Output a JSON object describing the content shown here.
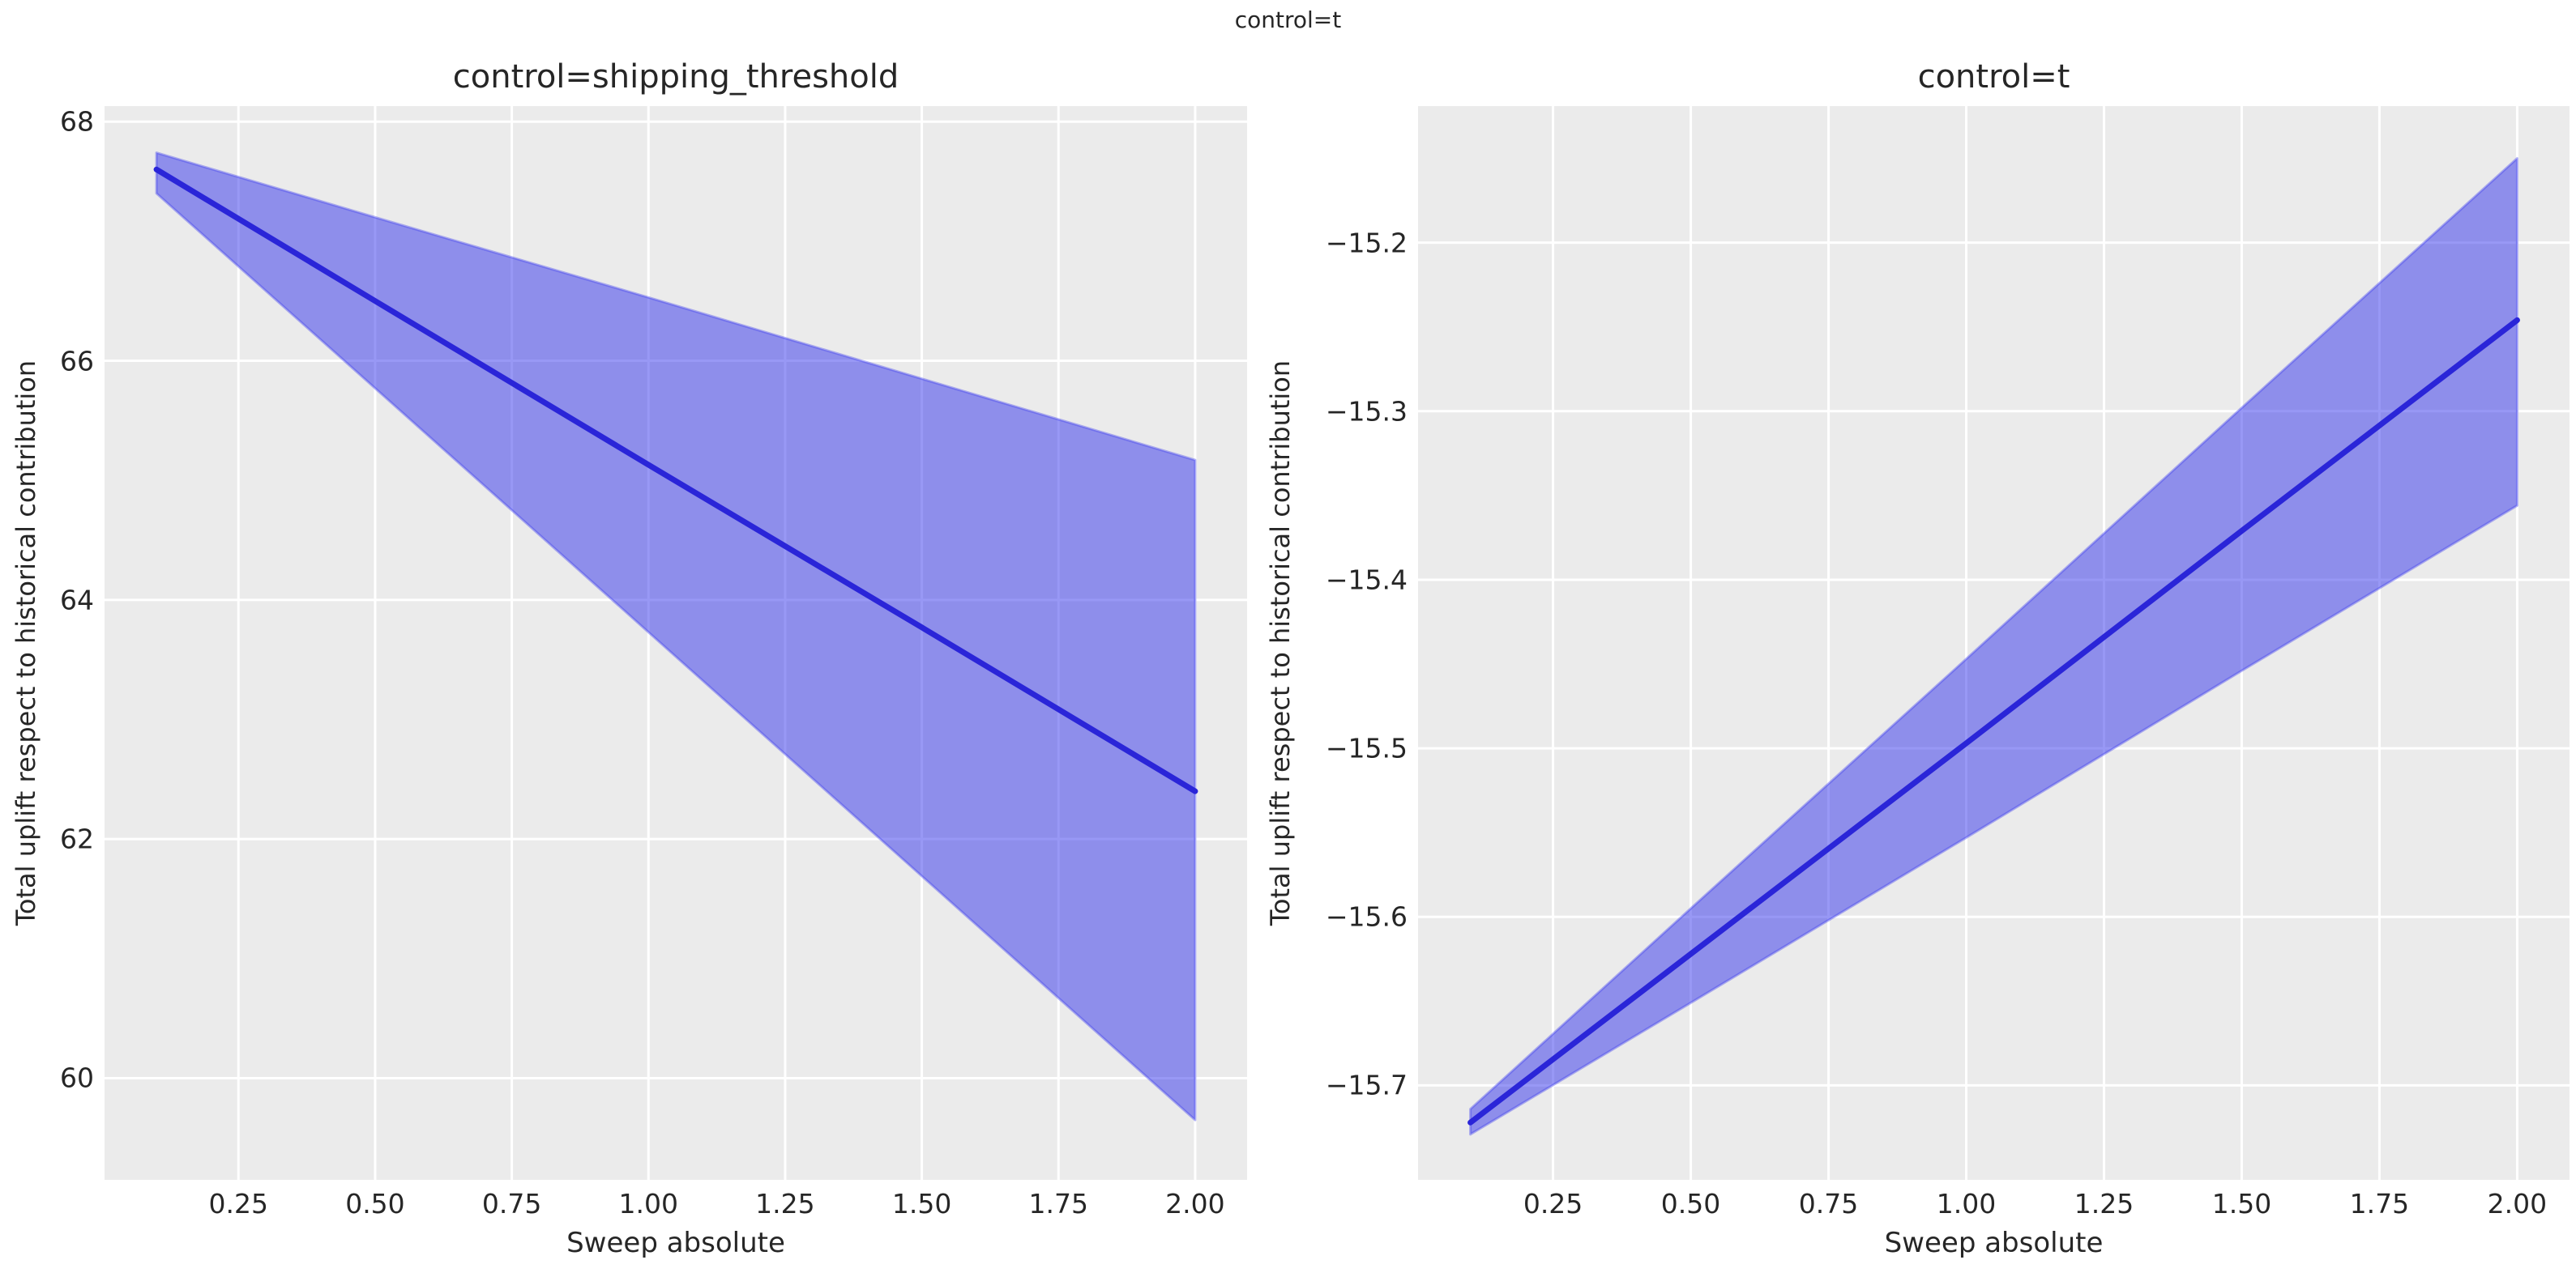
{
  "figure": {
    "suptitle": "control=t",
    "background_color": "#ffffff",
    "axes_background_color": "#ebebeb",
    "grid_color": "#ffffff",
    "line_color": "#2a25d8",
    "band_fill_color": "rgba(50,50,235,0.5)",
    "band_edge_color": "rgba(64,64,238,0.4)",
    "text_color": "#262626"
  },
  "chart_data": [
    {
      "type": "line",
      "title": "control=shipping_threshold",
      "xlabel": "Sweep absolute",
      "ylabel": "Total uplift respect to historical contribution",
      "legend_position": "none",
      "grid": true,
      "x": [
        0.1,
        0.5,
        1.0,
        1.5,
        2.0
      ],
      "series": [
        {
          "name": "mean",
          "values": [
            67.6,
            66.5,
            65.13,
            63.77,
            62.4
          ]
        },
        {
          "name": "ci_upper",
          "values": [
            67.74,
            67.2,
            66.53,
            65.85,
            65.17
          ]
        },
        {
          "name": "ci_lower",
          "values": [
            67.4,
            65.77,
            63.73,
            61.69,
            59.65
          ]
        }
      ],
      "xlim": [
        0.005,
        2.095
      ],
      "ylim": [
        59.15,
        68.13
      ],
      "xticks": {
        "values": [
          0.25,
          0.5,
          0.75,
          1.0,
          1.25,
          1.5,
          1.75,
          2.0
        ],
        "labels": [
          "0.25",
          "0.50",
          "0.75",
          "1.00",
          "1.25",
          "1.50",
          "1.75",
          "2.00"
        ]
      },
      "yticks": {
        "values": [
          68,
          66,
          64,
          62,
          60
        ],
        "labels": [
          "68",
          "66",
          "64",
          "62",
          "60"
        ]
      }
    },
    {
      "type": "line",
      "title": "control=t",
      "xlabel": "Sweep absolute",
      "ylabel": "Total uplift respect to historical contribution",
      "legend_position": "none",
      "grid": true,
      "x": [
        0.1,
        0.5,
        1.0,
        1.5,
        2.0
      ],
      "series": [
        {
          "name": "mean",
          "values": [
            -15.722,
            -15.622,
            -15.497,
            -15.371,
            -15.246
          ]
        },
        {
          "name": "ci_upper",
          "values": [
            -15.714,
            -15.595,
            -15.447,
            -15.298,
            -15.15
          ]
        },
        {
          "name": "ci_lower",
          "values": [
            -15.729,
            -15.651,
            -15.553,
            -15.454,
            -15.356
          ]
        }
      ],
      "xlim": [
        0.005,
        2.095
      ],
      "ylim": [
        -15.756,
        -15.119
      ],
      "xticks": {
        "values": [
          0.25,
          0.5,
          0.75,
          1.0,
          1.25,
          1.5,
          1.75,
          2.0
        ],
        "labels": [
          "0.25",
          "0.50",
          "0.75",
          "1.00",
          "1.25",
          "1.50",
          "1.75",
          "2.00"
        ]
      },
      "yticks": {
        "values": [
          -15.2,
          -15.3,
          -15.4,
          -15.5,
          -15.6,
          -15.7
        ],
        "labels": [
          "−15.2",
          "−15.3",
          "−15.4",
          "−15.5",
          "−15.6",
          "−15.7"
        ]
      }
    }
  ]
}
